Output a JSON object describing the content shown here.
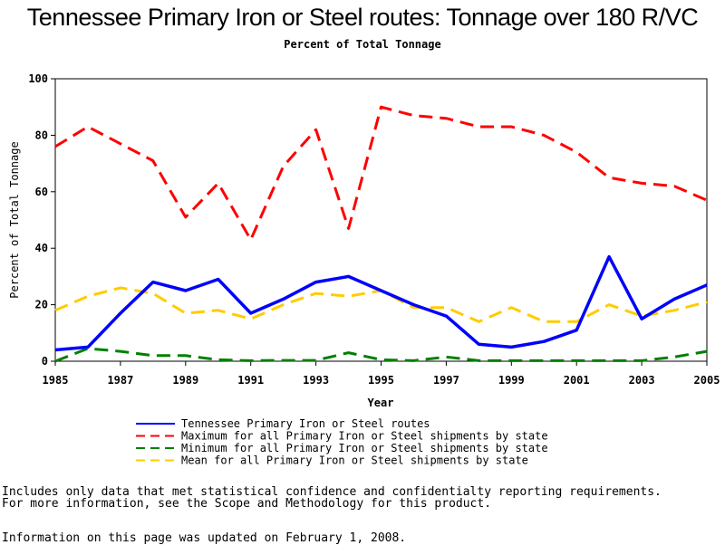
{
  "title": "Tennessee Primary Iron or Steel routes: Tonnage over 180 R/VC",
  "subtitle": "Percent of Total Tonnage",
  "chart_data": {
    "type": "line",
    "xlabel": "Year",
    "ylabel": "Percent of Total Tonnage",
    "xlim": [
      1985,
      2005
    ],
    "ylim": [
      0,
      100
    ],
    "x_ticks": [
      "1985",
      "1987",
      "1989",
      "1991",
      "1993",
      "1995",
      "1997",
      "1999",
      "2001",
      "2003",
      "2005"
    ],
    "y_ticks": [
      "0",
      "20",
      "40",
      "60",
      "80",
      "100"
    ],
    "x": [
      1985,
      1986,
      1987,
      1988,
      1989,
      1990,
      1991,
      1992,
      1993,
      1994,
      1995,
      1996,
      1997,
      1998,
      1999,
      2000,
      2001,
      2002,
      2003,
      2004,
      2005
    ],
    "series": [
      {
        "name": "Tennessee Primary Iron or Steel routes",
        "color": "#0000ff",
        "dash": "solid",
        "values": [
          4,
          5,
          17,
          28,
          25,
          29,
          17,
          22,
          28,
          30,
          25,
          20,
          16,
          6,
          5,
          7,
          11,
          37,
          15,
          22,
          27
        ]
      },
      {
        "name": "Maximum for all Primary Iron or Steel shipments by state",
        "color": "#ff0000",
        "dash": "dashed",
        "values": [
          76,
          83,
          77,
          71,
          51,
          63,
          43,
          69,
          82,
          47,
          90,
          87,
          86,
          83,
          83,
          80,
          74,
          65,
          63,
          62,
          57
        ]
      },
      {
        "name": "Minimum for all Primary Iron or Steel shipments by state",
        "color": "#008000",
        "dash": "dashed",
        "values": [
          0,
          4.5,
          3.5,
          2,
          2,
          0.5,
          0.2,
          0.3,
          0.3,
          3,
          0.5,
          0.2,
          1.5,
          0.2,
          0.2,
          0.2,
          0.2,
          0.2,
          0.2,
          1.5,
          3.5
        ]
      },
      {
        "name": "Mean for all Primary Iron or Steel shipments by state",
        "color": "#ffcc00",
        "dash": "dashed",
        "values": [
          18,
          23,
          26,
          24,
          17,
          18,
          15,
          20,
          24,
          23,
          25,
          19,
          19,
          14,
          19,
          14,
          14,
          20,
          16,
          18,
          21
        ]
      }
    ]
  },
  "footer": {
    "line1": "Includes only data that met statistical confidence and confidentialty reporting requirements.",
    "line2": "For more information, see the Scope and Methodology for this product.",
    "line3": "Information on this page was updated on February 1, 2008."
  }
}
